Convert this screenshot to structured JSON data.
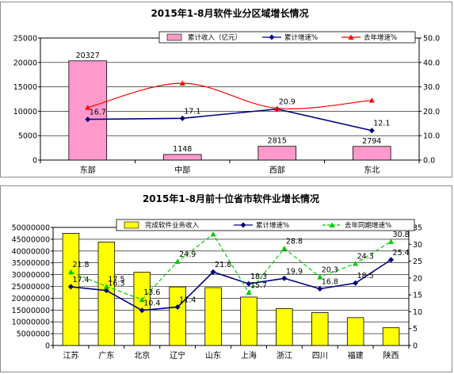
{
  "chart_data": [
    {
      "type": "bar",
      "title": "2015年1-8月软件业分区域增长情况",
      "categories": [
        "东部",
        "中部",
        "西部",
        "东北"
      ],
      "ylim_left": [
        0,
        25000
      ],
      "left_ticks": [
        "0",
        "5000",
        "10000",
        "15000",
        "20000",
        "25000"
      ],
      "ylim_right": [
        0,
        50
      ],
      "right_ticks": [
        "0.0",
        "10.0",
        "20.0",
        "30.0",
        "40.0",
        "50.0"
      ],
      "legend_position": "top",
      "series": [
        {
          "name": "累计收入（亿元）",
          "kind": "bar",
          "axis": "left",
          "color": "#ff99cc",
          "values": [
            20327,
            1148,
            2815,
            2794
          ],
          "labels": [
            "20327",
            "1148",
            "2815",
            "2794"
          ]
        },
        {
          "name": "累计增速%",
          "kind": "line",
          "axis": "right",
          "color": "#000080",
          "marker": "diamond",
          "values": [
            16.7,
            17.1,
            20.9,
            12.1
          ],
          "labels": [
            "16.7",
            "17.1",
            "20.9",
            "12.1"
          ]
        },
        {
          "name": "去年增速%",
          "kind": "line",
          "axis": "right",
          "color": "#ff0000",
          "marker": "triangle",
          "smooth": true,
          "values": [
            21.5,
            31.5,
            21.2,
            24.5
          ]
        }
      ]
    },
    {
      "type": "bar",
      "title": "2015年1-8月前十位省市软件业增长情况",
      "categories": [
        "江苏",
        "广东",
        "北京",
        "辽宁",
        "山东",
        "上海",
        "浙江",
        "四川",
        "福建",
        "陕西"
      ],
      "ylim_left": [
        0,
        50000000
      ],
      "left_ticks": [
        "0",
        "5000000",
        "10000000",
        "15000000",
        "20000000",
        "25000000",
        "30000000",
        "35000000",
        "40000000",
        "45000000",
        "50000000"
      ],
      "ylim_right": [
        0,
        35
      ],
      "right_ticks": [
        "0",
        "5",
        "10",
        "15",
        "20",
        "25",
        "30",
        "35"
      ],
      "legend_position": "top",
      "series": [
        {
          "name": "完成软件业务收入",
          "kind": "bar",
          "axis": "left",
          "color": "#ffff00",
          "values": [
            47500000,
            43800000,
            31000000,
            24800000,
            24500000,
            20500000,
            15600000,
            13900000,
            11800000,
            7500000
          ]
        },
        {
          "name": "累计增速%",
          "kind": "line",
          "axis": "right",
          "color": "#000080",
          "marker": "diamond",
          "values": [
            17.4,
            16.3,
            10.4,
            11.4,
            21.8,
            18.3,
            19.9,
            16.8,
            18.5,
            25.4
          ],
          "labels": [
            "17.4",
            "16.3",
            "10.4",
            "11.4",
            "21.8",
            "18.3",
            "19.9",
            "16.8",
            "18.5",
            "25.4"
          ]
        },
        {
          "name": "去年同期增速%",
          "kind": "line",
          "axis": "right",
          "color": "#00cc00",
          "marker": "triangle",
          "dashed": true,
          "values": [
            21.8,
            17.5,
            13.6,
            24.9,
            33.0,
            15.7,
            28.8,
            20.3,
            24.3,
            30.8
          ],
          "labels": [
            "21.8",
            "17.5",
            "13.6",
            "24.9",
            "33",
            "15.7",
            "28.8",
            "20.3",
            "24.3",
            "30.8"
          ]
        }
      ]
    }
  ]
}
